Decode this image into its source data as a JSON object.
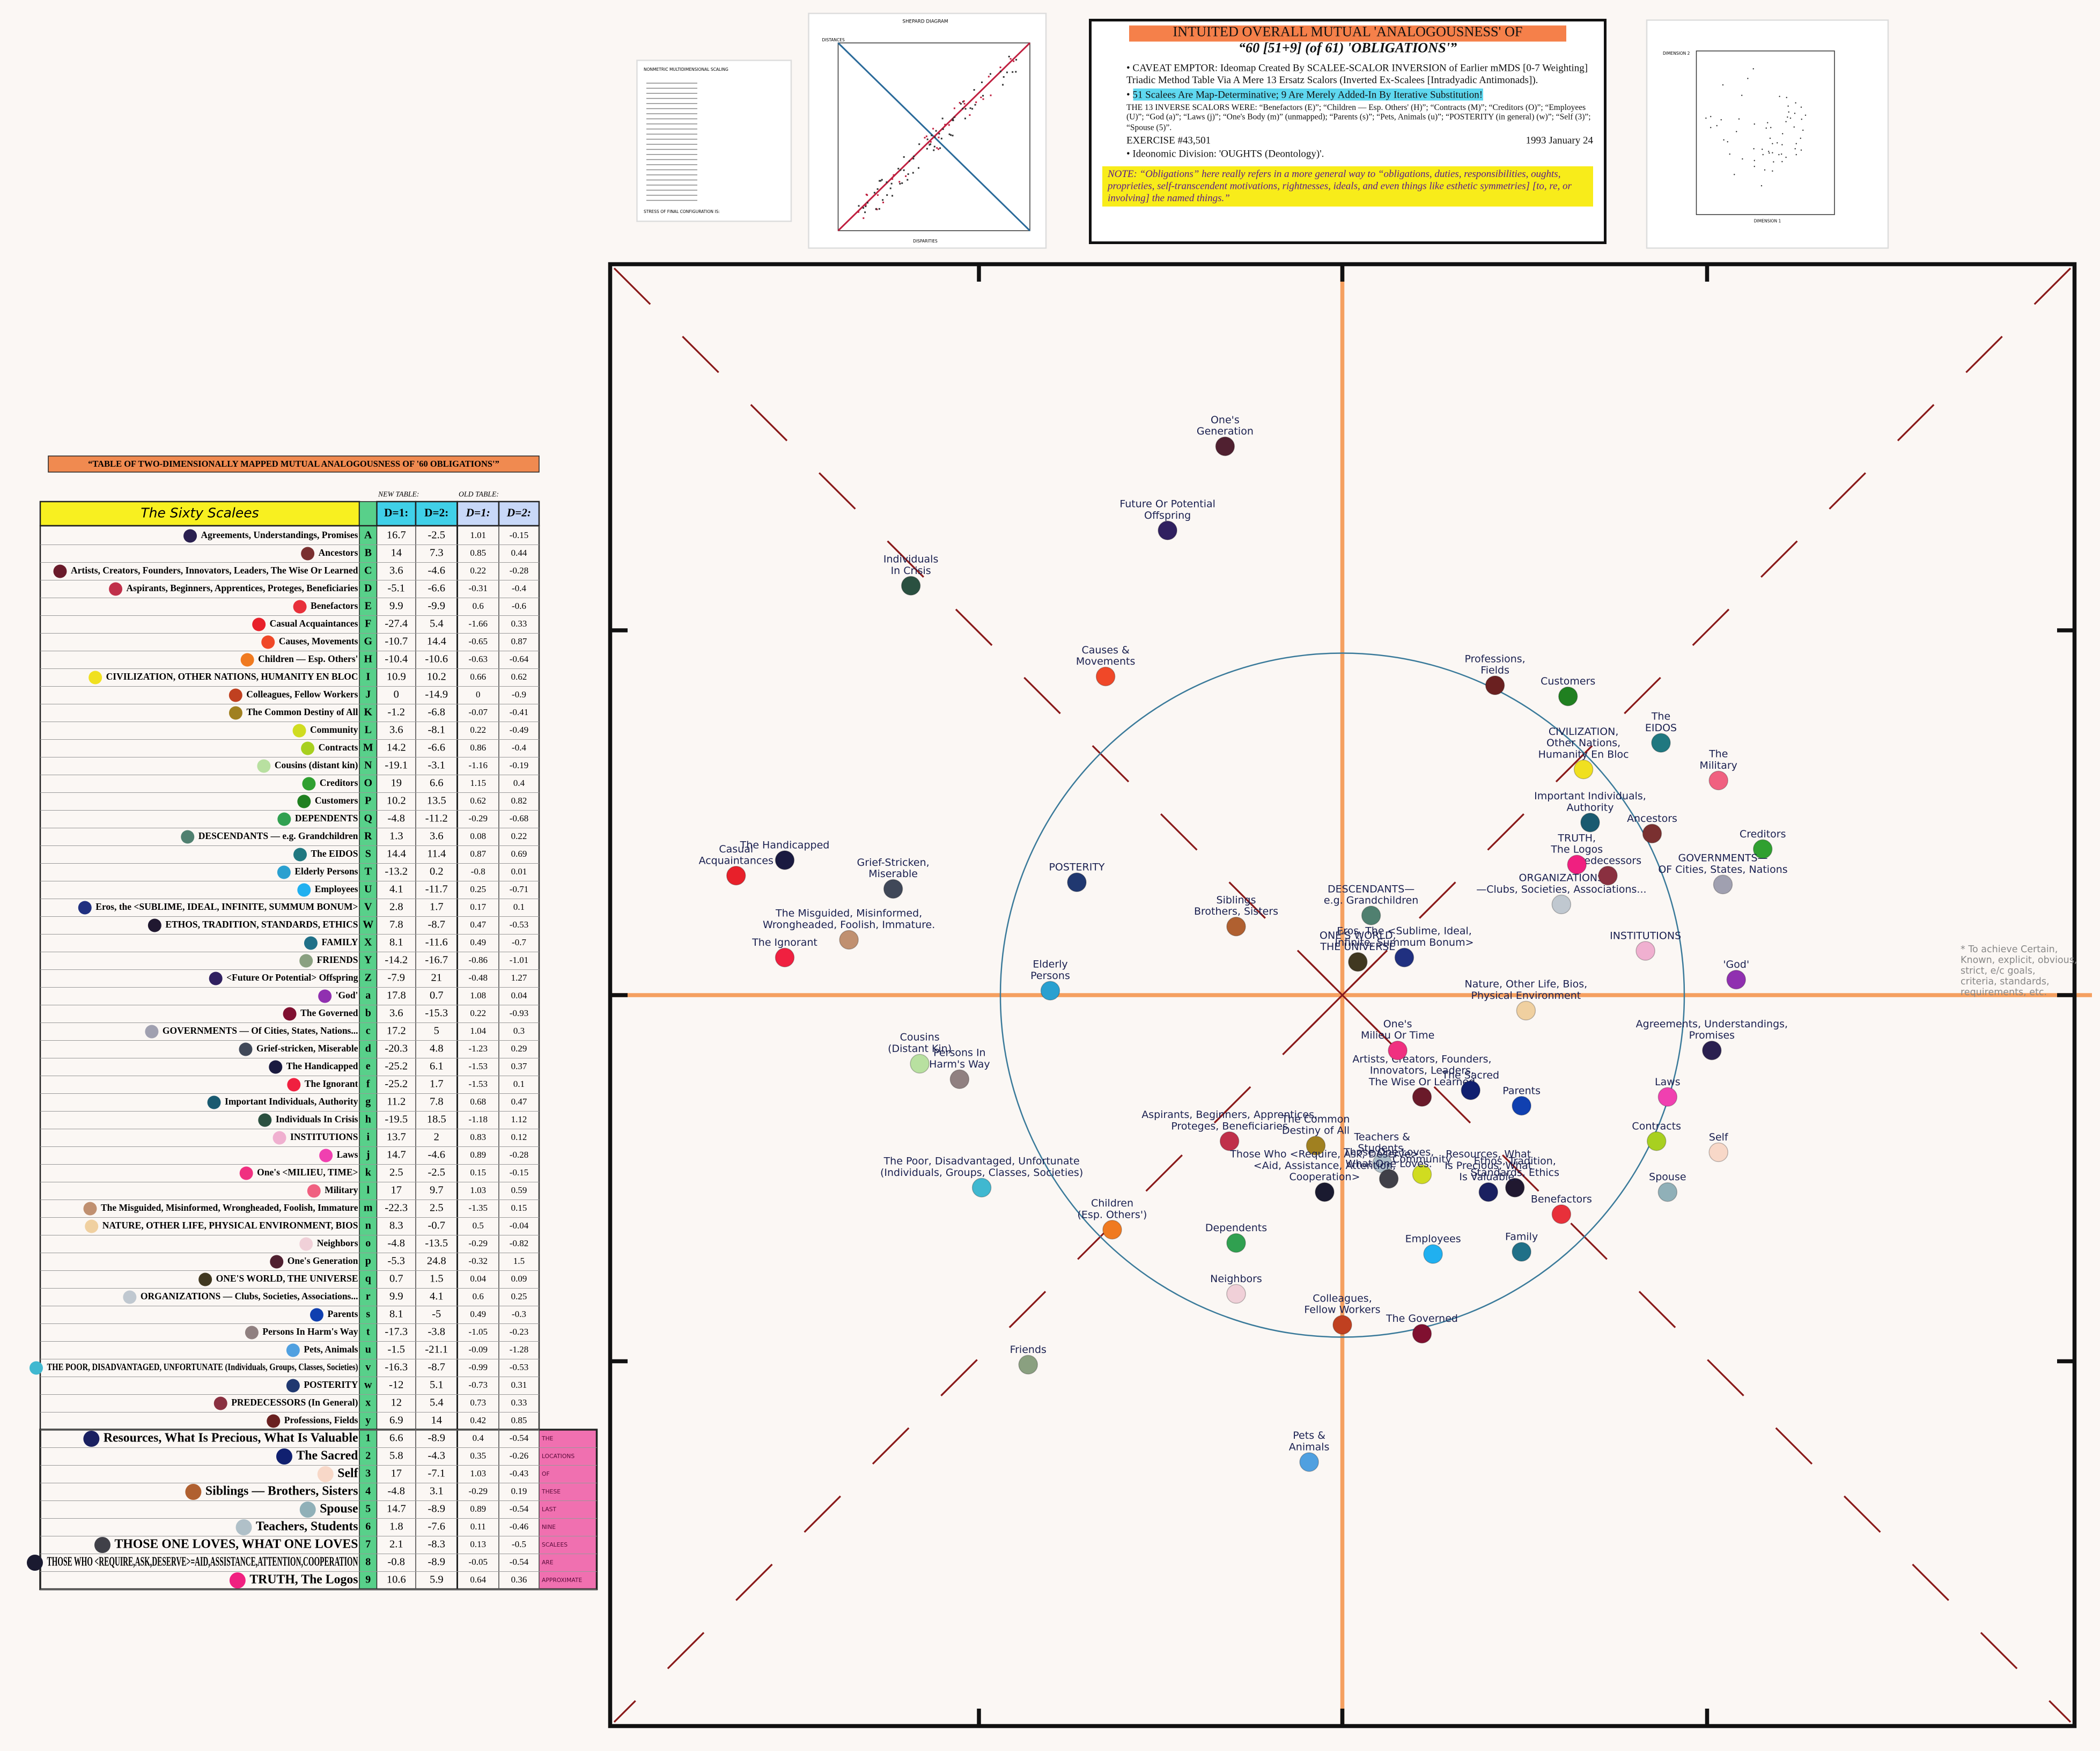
{
  "table": {
    "title": "“TABLE OF TWO-DIMENSIONALLY MAPPED MUTUAL ANALOGOUSNESS OF '60 OBLIGATIONS'”",
    "new_label": "NEW TABLE:",
    "old_label": "OLD TABLE:",
    "name_header": "The Sixty Scalees",
    "col_headers": [
      "D=1:",
      "D=2:",
      "D=1:",
      "D=2:"
    ],
    "pink_note": [
      "THE",
      "LOCATIONS",
      "OF",
      "THESE",
      "LAST",
      "NINE",
      "SCALEES",
      "ARE",
      "APPROXIMATE"
    ],
    "rows": [
      {
        "name": "Agreements, Understandings, Promises",
        "key": "A",
        "d1": 16.7,
        "d2": -2.5,
        "old_d1": 1.01,
        "old_d2": -0.15,
        "color": "#2a2050",
        "map_label": [
          "Agreements, Understandings,",
          "Promises"
        ]
      },
      {
        "name": "Ancestors",
        "key": "B",
        "d1": 14,
        "d2": 7.3,
        "old_d1": 0.85,
        "old_d2": 0.44,
        "color": "#7a3030",
        "map_label": [
          "Ancestors"
        ]
      },
      {
        "name": "Artists, Creators, Founders, Innovators, Leaders, The Wise Or Learned",
        "key": "C",
        "d1": 3.6,
        "d2": -4.6,
        "old_d1": 0.22,
        "old_d2": -0.28,
        "color": "#6a1a2a",
        "map_label": [
          "Artists, Creators, Founders,",
          "Innovators, Leaders,",
          "The Wise Or Learned"
        ]
      },
      {
        "name": "Aspirants, Beginners, Apprentices, Proteges, Beneficiaries",
        "key": "D",
        "d1": -5.1,
        "d2": -6.6,
        "old_d1": -0.31,
        "old_d2": -0.4,
        "color": "#c0304a",
        "map_label": [
          "Aspirants, Beginners, Apprentices,",
          "Proteges, Beneficiaries"
        ]
      },
      {
        "name": "Benefactors",
        "key": "E",
        "d1": 9.9,
        "d2": -9.9,
        "old_d1": 0.6,
        "old_d2": -0.6,
        "color": "#e8303a",
        "map_label": [
          "Benefactors"
        ]
      },
      {
        "name": "Casual Acquaintances",
        "key": "F",
        "d1": -27.4,
        "d2": 5.4,
        "old_d1": -1.66,
        "old_d2": 0.33,
        "color": "#e8202a",
        "map_label": [
          "Casual",
          "Acquaintances"
        ]
      },
      {
        "name": "Causes, Movements",
        "key": "G",
        "d1": -10.7,
        "d2": 14.4,
        "old_d1": -0.65,
        "old_d2": 0.87,
        "color": "#f04828",
        "map_label": [
          "Causes &",
          "Movements"
        ]
      },
      {
        "name": "Children — Esp. Others'",
        "key": "H",
        "d1": -10.4,
        "d2": -10.6,
        "old_d1": -0.63,
        "old_d2": -0.64,
        "color": "#f07a20",
        "map_label": [
          "Children",
          "(Esp. Others')"
        ]
      },
      {
        "name": "CIVILIZATION, OTHER NATIONS, HUMANITY EN BLOC",
        "key": "I",
        "d1": 10.9,
        "d2": 10.2,
        "old_d1": 0.66,
        "old_d2": 0.62,
        "color": "#f0e020",
        "map_label": [
          "CIVILIZATION,",
          "Other Nations,",
          "Humanity En Bloc"
        ]
      },
      {
        "name": "Colleagues, Fellow Workers",
        "key": "J",
        "d1": 0,
        "d2": -14.9,
        "old_d1": 0,
        "old_d2": -0.9,
        "color": "#c04020",
        "map_label": [
          "Colleagues,",
          "Fellow Workers"
        ]
      },
      {
        "name": "The Common Destiny of All",
        "key": "K",
        "d1": -1.2,
        "d2": -6.8,
        "old_d1": -0.07,
        "old_d2": -0.41,
        "color": "#a08020",
        "map_label": [
          "The Common",
          "Destiny of All"
        ]
      },
      {
        "name": "Community",
        "key": "L",
        "d1": 3.6,
        "d2": -8.1,
        "old_d1": 0.22,
        "old_d2": -0.49,
        "color": "#d0dc20",
        "map_label": [
          "Community"
        ]
      },
      {
        "name": "Contracts",
        "key": "M",
        "d1": 14.2,
        "d2": -6.6,
        "old_d1": 0.86,
        "old_d2": -0.4,
        "color": "#a8d020",
        "map_label": [
          "Contracts"
        ]
      },
      {
        "name": "Cousins (distant kin)",
        "key": "N",
        "d1": -19.1,
        "d2": -3.1,
        "old_d1": -1.16,
        "old_d2": -0.19,
        "color": "#b8e0a0",
        "map_label": [
          "Cousins",
          "(Distant Kin)"
        ]
      },
      {
        "name": "Creditors",
        "key": "O",
        "d1": 19,
        "d2": 6.6,
        "old_d1": 1.15,
        "old_d2": 0.4,
        "color": "#30a030",
        "map_label": [
          "Creditors"
        ]
      },
      {
        "name": "Customers",
        "key": "P",
        "d1": 10.2,
        "d2": 13.5,
        "old_d1": 0.62,
        "old_d2": 0.82,
        "color": "#208020",
        "map_label": [
          "Customers"
        ]
      },
      {
        "name": "DEPENDENTS",
        "key": "Q",
        "d1": -4.8,
        "d2": -11.2,
        "old_d1": -0.29,
        "old_d2": -0.68,
        "color": "#30a050",
        "map_label": [
          "Dependents"
        ]
      },
      {
        "name": "DESCENDANTS — e.g. Grandchildren",
        "key": "R",
        "d1": 1.3,
        "d2": 3.6,
        "old_d1": 0.08,
        "old_d2": 0.22,
        "color": "#508070",
        "map_label": [
          "DESCENDANTS—",
          "e.g. Grandchildren"
        ]
      },
      {
        "name": "The EIDOS",
        "key": "S",
        "d1": 14.4,
        "d2": 11.4,
        "old_d1": 0.87,
        "old_d2": 0.69,
        "color": "#207880",
        "map_label": [
          "The",
          "EIDOS"
        ]
      },
      {
        "name": "Elderly Persons",
        "key": "T",
        "d1": -13.2,
        "d2": 0.2,
        "old_d1": -0.8,
        "old_d2": 0.01,
        "color": "#2aa0d0",
        "map_label": [
          "Elderly",
          "Persons"
        ]
      },
      {
        "name": "Employees",
        "key": "U",
        "d1": 4.1,
        "d2": -11.7,
        "old_d1": 0.25,
        "old_d2": -0.71,
        "color": "#20b0f0",
        "map_label": [
          "Employees"
        ]
      },
      {
        "name": "Eros, the <SUBLIME, IDEAL, INFINITE, SUMMUM BONUM>",
        "key": "V",
        "d1": 2.8,
        "d2": 1.7,
        "old_d1": 0.17,
        "old_d2": 0.1,
        "color": "#203080",
        "map_label": [
          "Eros, The <Sublime, Ideal,",
          "Infinite, Summum Bonum>"
        ]
      },
      {
        "name": "ETHOS, TRADITION, STANDARDS, ETHICS",
        "key": "W",
        "d1": 7.8,
        "d2": -8.7,
        "old_d1": 0.47,
        "old_d2": -0.53,
        "color": "#201830",
        "map_label": [
          "Ethos, Tradition,",
          "Standards, Ethics"
        ]
      },
      {
        "name": "FAMILY",
        "key": "X",
        "d1": 8.1,
        "d2": -11.6,
        "old_d1": 0.49,
        "old_d2": -0.7,
        "color": "#207088",
        "map_label": [
          "Family"
        ]
      },
      {
        "name": "FRIENDS",
        "key": "Y",
        "d1": -14.2,
        "d2": -16.7,
        "old_d1": -0.86,
        "old_d2": -1.01,
        "color": "#8aa080",
        "map_label": [
          "Friends"
        ]
      },
      {
        "name": "<Future Or Potential> Offspring",
        "key": "Z",
        "d1": -7.9,
        "d2": 21,
        "old_d1": -0.48,
        "old_d2": 1.27,
        "color": "#302060",
        "map_label": [
          "Future Or Potential",
          "Offspring"
        ]
      },
      {
        "name": "'God'",
        "key": "a",
        "d1": 17.8,
        "d2": 0.7,
        "old_d1": 1.08,
        "old_d2": 0.04,
        "color": "#9030b0",
        "map_label": [
          "'God'"
        ]
      },
      {
        "name": "The Governed",
        "key": "b",
        "d1": 3.6,
        "d2": -15.3,
        "old_d1": 0.22,
        "old_d2": -0.93,
        "color": "#801030",
        "map_label": [
          "The Governed"
        ]
      },
      {
        "name": "GOVERNMENTS — Of Cities, States, Nations...",
        "key": "c",
        "d1": 17.2,
        "d2": 5,
        "old_d1": 1.04,
        "old_d2": 0.3,
        "color": "#a0a0b0",
        "map_label": [
          "GOVERNMENTS—",
          "OF Cities, States, Nations"
        ]
      },
      {
        "name": "Grief-stricken, Miserable",
        "key": "d",
        "d1": -20.3,
        "d2": 4.8,
        "old_d1": -1.23,
        "old_d2": 0.29,
        "color": "#404858",
        "map_label": [
          "Grief-Stricken,",
          "Miserable"
        ]
      },
      {
        "name": "The Handicapped",
        "key": "e",
        "d1": -25.2,
        "d2": 6.1,
        "old_d1": -1.53,
        "old_d2": 0.37,
        "color": "#1a1a40",
        "map_label": [
          "The Handicapped"
        ]
      },
      {
        "name": "The Ignorant",
        "key": "f",
        "d1": -25.2,
        "d2": 1.7,
        "old_d1": -1.53,
        "old_d2": 0.1,
        "color": "#f02040",
        "map_label": [
          "The Ignorant"
        ]
      },
      {
        "name": "Important Individuals, Authority",
        "key": "g",
        "d1": 11.2,
        "d2": 7.8,
        "old_d1": 0.68,
        "old_d2": 0.47,
        "color": "#1a5a70",
        "map_label": [
          "Important Individuals,",
          "Authority"
        ]
      },
      {
        "name": "Individuals In Crisis",
        "key": "h",
        "d1": -19.5,
        "d2": 18.5,
        "old_d1": -1.18,
        "old_d2": 1.12,
        "color": "#2a5040",
        "map_label": [
          "Individuals",
          "In Crisis"
        ]
      },
      {
        "name": "INSTITUTIONS",
        "key": "i",
        "d1": 13.7,
        "d2": 2,
        "old_d1": 0.83,
        "old_d2": 0.12,
        "color": "#f0b0d0",
        "map_label": [
          "INSTITUTIONS"
        ]
      },
      {
        "name": "Laws",
        "key": "j",
        "d1": 14.7,
        "d2": -4.6,
        "old_d1": 0.89,
        "old_d2": -0.28,
        "color": "#f040b0",
        "map_label": [
          "Laws"
        ]
      },
      {
        "name": "One's <MILIEU, TIME>",
        "key": "k",
        "d1": 2.5,
        "d2": -2.5,
        "old_d1": 0.15,
        "old_d2": -0.15,
        "color": "#f03080",
        "map_label": [
          "One's",
          "Milieu Or Time"
        ]
      },
      {
        "name": "Military",
        "key": "l",
        "d1": 17,
        "d2": 9.7,
        "old_d1": 1.03,
        "old_d2": 0.59,
        "color": "#f06080",
        "map_label": [
          "The",
          "Military"
        ]
      },
      {
        "name": "The Misguided, Misinformed, Wrongheaded, Foolish, Immature",
        "key": "m",
        "d1": -22.3,
        "d2": 2.5,
        "old_d1": -1.35,
        "old_d2": 0.15,
        "color": "#c09070",
        "map_label": [
          "The Misguided, Misinformed,",
          "Wrongheaded, Foolish, Immature."
        ]
      },
      {
        "name": "NATURE, OTHER LIFE, PHYSICAL ENVIRONMENT, BIOS",
        "key": "n",
        "d1": 8.3,
        "d2": -0.7,
        "old_d1": 0.5,
        "old_d2": -0.04,
        "color": "#f0d0a0",
        "map_label": [
          "Nature, Other Life, Bios,",
          "Physical Environment"
        ]
      },
      {
        "name": "Neighbors",
        "key": "o",
        "d1": -4.8,
        "d2": -13.5,
        "old_d1": -0.29,
        "old_d2": -0.82,
        "color": "#f0d0d8",
        "map_label": [
          "Neighbors"
        ]
      },
      {
        "name": "One's Generation",
        "key": "p",
        "d1": -5.3,
        "d2": 24.8,
        "old_d1": -0.32,
        "old_d2": 1.5,
        "color": "#502030",
        "map_label": [
          "One's",
          "Generation"
        ]
      },
      {
        "name": "ONE'S WORLD, THE UNIVERSE",
        "key": "q",
        "d1": 0.7,
        "d2": 1.5,
        "old_d1": 0.04,
        "old_d2": 0.09,
        "color": "#403820",
        "map_label": [
          "ONE'S WORLD,",
          "THE UNIVERSE"
        ]
      },
      {
        "name": "ORGANIZATIONS — Clubs, Societies, Associations...",
        "key": "r",
        "d1": 9.9,
        "d2": 4.1,
        "old_d1": 0.6,
        "old_d2": 0.25,
        "color": "#c0c8d0",
        "map_label": [
          "ORGANIZATIONS",
          "—Clubs, Societies, Associations..."
        ]
      },
      {
        "name": "Parents",
        "key": "s",
        "d1": 8.1,
        "d2": -5,
        "old_d1": 0.49,
        "old_d2": -0.3,
        "color": "#1040b0",
        "map_label": [
          "Parents"
        ]
      },
      {
        "name": "Persons In Harm's Way",
        "key": "t",
        "d1": -17.3,
        "d2": -3.8,
        "old_d1": -1.05,
        "old_d2": -0.23,
        "color": "#908080",
        "map_label": [
          "Persons In",
          "Harm's Way"
        ]
      },
      {
        "name": "Pets, Animals",
        "key": "u",
        "d1": -1.5,
        "d2": -21.1,
        "old_d1": -0.09,
        "old_d2": -1.28,
        "color": "#50a0e0",
        "map_label": [
          "Pets &",
          "Animals"
        ]
      },
      {
        "name": "THE POOR, DISADVANTAGED, UNFORTUNATE (Individuals, Groups, Classes, Societies)",
        "key": "v",
        "d1": -16.3,
        "d2": -8.7,
        "old_d1": -0.99,
        "old_d2": -0.53,
        "color": "#40b8d0",
        "map_label": [
          "The Poor, Disadvantaged, Unfortunate",
          "(Individuals, Groups, Classes, Societies)"
        ]
      },
      {
        "name": "POSTERITY",
        "key": "w",
        "d1": -12,
        "d2": 5.1,
        "old_d1": -0.73,
        "old_d2": 0.31,
        "color": "#203870",
        "map_label": [
          "POSTERITY"
        ]
      },
      {
        "name": "PREDECESSORS (In General)",
        "key": "x",
        "d1": 12,
        "d2": 5.4,
        "old_d1": 0.73,
        "old_d2": 0.33,
        "color": "#8a3040",
        "map_label": [
          "Predecessors"
        ]
      },
      {
        "name": "Professions, Fields",
        "key": "y",
        "d1": 6.9,
        "d2": 14,
        "old_d1": 0.42,
        "old_d2": 0.85,
        "color": "#6a2020",
        "map_label": [
          "Professions,",
          "Fields"
        ]
      },
      {
        "name": "Resources, What Is Precious, What Is Valuable",
        "key": "1",
        "d1": 6.6,
        "d2": -8.9,
        "old_d1": 0.4,
        "old_d2": -0.54,
        "color": "#1a2060",
        "map_label": [
          "Resources, What",
          "Is Precious, What",
          "Is Valuable."
        ]
      },
      {
        "name": "The Sacred",
        "key": "2",
        "d1": 5.8,
        "d2": -4.3,
        "old_d1": 0.35,
        "old_d2": -0.26,
        "color": "#102070",
        "map_label": [
          "The Sacred"
        ]
      },
      {
        "name": "Self",
        "key": "3",
        "d1": 17,
        "d2": -7.1,
        "old_d1": 1.03,
        "old_d2": -0.43,
        "color": "#f8d8c8",
        "map_label": [
          "Self"
        ]
      },
      {
        "name": "Siblings — Brothers, Sisters",
        "key": "4",
        "d1": -4.8,
        "d2": 3.1,
        "old_d1": -0.29,
        "old_d2": 0.19,
        "color": "#b06030",
        "map_label": [
          "Siblings",
          "Brothers, Sisters"
        ]
      },
      {
        "name": "Spouse",
        "key": "5",
        "d1": 14.7,
        "d2": -8.9,
        "old_d1": 0.89,
        "old_d2": -0.54,
        "color": "#90b0b8",
        "map_label": [
          "Spouse"
        ]
      },
      {
        "name": "Teachers, Students",
        "key": "6",
        "d1": 1.8,
        "d2": -7.6,
        "old_d1": 0.11,
        "old_d2": -0.46,
        "color": "#b0c0c8",
        "map_label": [
          "Teachers &",
          "Students."
        ]
      },
      {
        "name": "THOSE ONE LOVES, WHAT ONE LOVES",
        "key": "7",
        "d1": 2.1,
        "d2": -8.3,
        "old_d1": 0.13,
        "old_d2": -0.5,
        "color": "#404048",
        "map_label": [
          "Those One Loves,",
          "What One Loves."
        ]
      },
      {
        "name": "THOSE WHO <REQUIRE,ASK,DESERVE>=AID,ASSISTANCE,ATTENTION,COOPERATION",
        "key": "8",
        "d1": -0.8,
        "d2": -8.9,
        "old_d1": -0.05,
        "old_d2": -0.54,
        "color": "#1a1a30",
        "map_label": [
          "Those Who <Require, Ask, Deserve>",
          "<Aid, Assistance, Attention,",
          "Cooperation>"
        ]
      },
      {
        "name": "TRUTH, The Logos",
        "key": "9",
        "d1": 10.6,
        "d2": 5.9,
        "old_d1": 0.64,
        "old_d2": 0.36,
        "color": "#f02080",
        "map_label": [
          "TRUTH,",
          "The Logos"
        ]
      }
    ]
  },
  "info_box": {
    "title": [
      "INTUITED OVERALL MUTUAL 'ANALOGOUSNESS' OF",
      "“60 [51+9] (of 61) 'OBLIGATIONS'”"
    ],
    "items": [
      "CAVEAT EMPTOR: Ideomap Created By SCALEE-SCALOR INVERSION of Earlier mMDS [0-7 Weighting] Triadic Method Table Via A Mere 13 Ersatz Scalors (Inverted Ex-Scalees [Intradyadic Antimonads]).",
      "51 Scalees Are Map-Determinative; 9 Are Merely Added-In By Iterative Substitution!",
      "THE 13 INVERSE SCALORS WERE: “Benefactors (E)”; “Children — Esp. Others' (H)”; “Contracts (M)”; “Creditors (O)”; “Employees (U)”; “God (a)”; “Laws (j)”; “One's Body (m)” (unmapped); “Parents (s)”; “Pets, Animals (u)”; “POSTERITY (in general) (w)”; “Self (3)”; “Spouse (5)”.",
      "EXERCISE #43,501",
      "Ideonomic Division: 'OUGHTS (Deontology)'."
    ],
    "date": "1993 January 24",
    "note": "NOTE: “Obligations” here really refers in a more general way to “obligations, duties, responsibilities, oughts, proprieties, self-transcendent motivations, rightnesses, ideals, and even things like esthetic symmetries] [to, re, or involving] the named things.”"
  },
  "thumbnails": {
    "mds_title": "NONMETRIC MULTIDIMENSIONAL SCALING",
    "mds_footer": "STRESS OF FINAL CONFIGURATION IS:",
    "shepard_title": "SHEPARD DIAGRAM",
    "shepard_y": "DISTANCES",
    "shepard_x": "DISPARITIES",
    "config_y": "DIMENSION 2",
    "config_x": "DIMENSION 1"
  },
  "side_note": [
    "* To achieve Certain,",
    "Known, explicit, obvious,",
    "strict, e/c goals,",
    "criteria, standards,",
    "requirements, etc."
  ]
}
